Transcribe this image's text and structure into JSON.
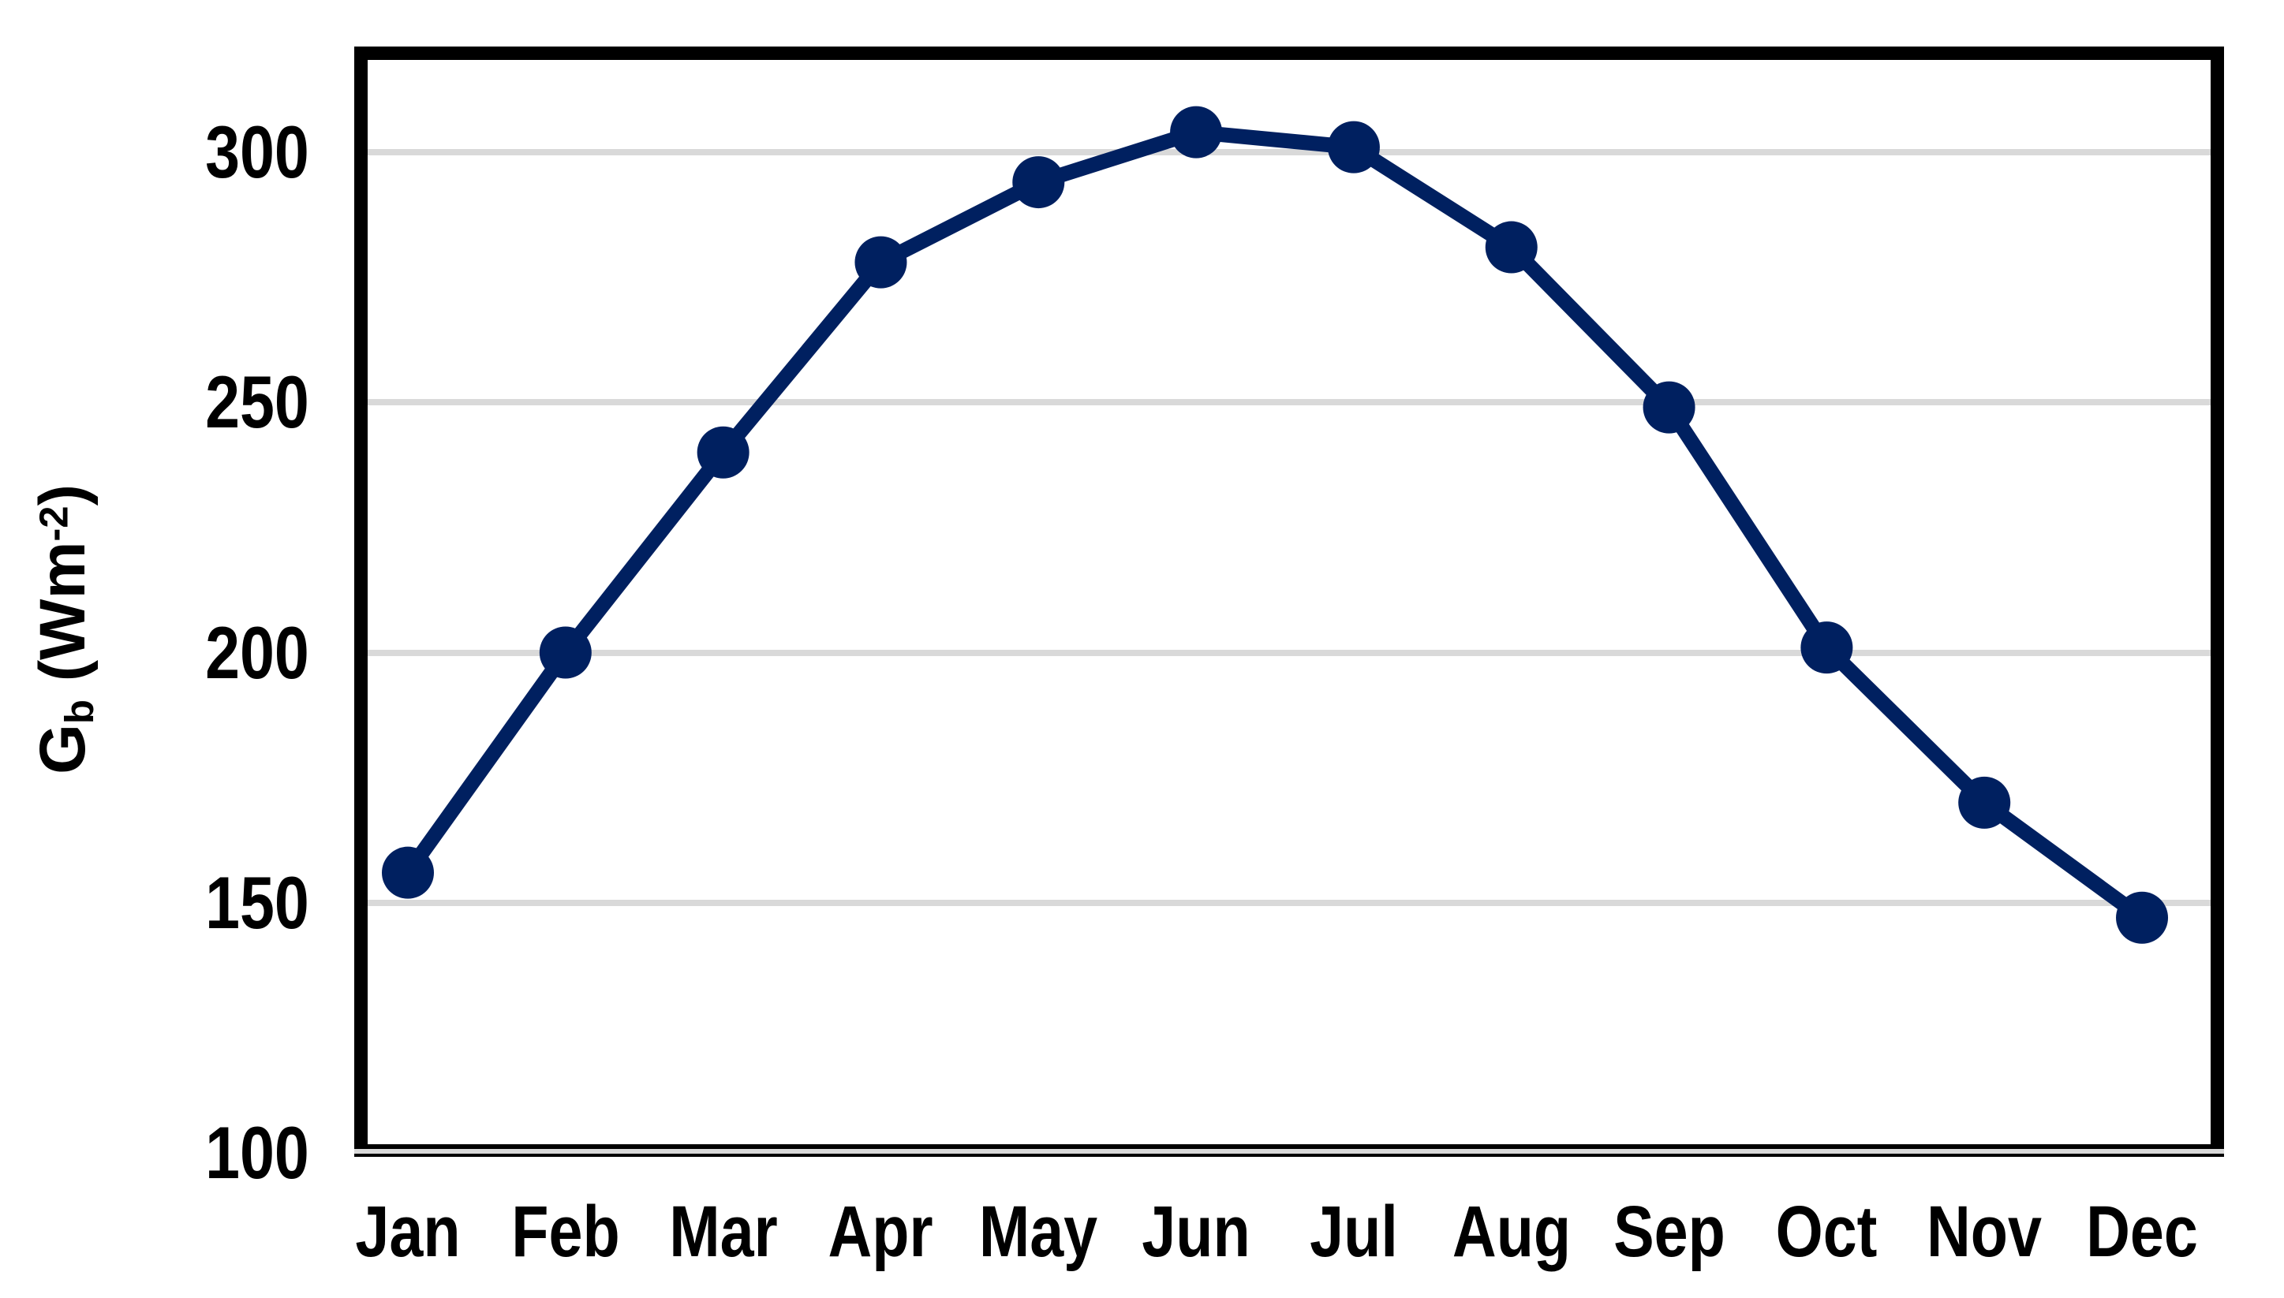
{
  "chart_data": {
    "type": "line",
    "categories": [
      "Jan",
      "Feb",
      "Mar",
      "Apr",
      "May",
      "Jun",
      "Jul",
      "Aug",
      "Sep",
      "Oct",
      "Nov",
      "Dec"
    ],
    "series": [
      {
        "name": "Gb",
        "values": [
          156,
          200,
          240,
          278,
          294,
          304,
          301,
          281,
          249,
          201,
          170,
          147
        ]
      }
    ],
    "ylabel": "Gb (Wm-2)",
    "ylabel_parts": {
      "base": "G",
      "sub": "b",
      "mid": " (Wm",
      "sup": "-2",
      "end": ")"
    },
    "xlabel": "",
    "yticks": [
      100,
      150,
      200,
      250,
      300
    ],
    "ylim": [
      100,
      318
    ],
    "grid": "horizontal",
    "legend": "none",
    "marker": "circle",
    "line_color": "#002060",
    "gridline_color": "#d9d9d9",
    "axis_color": "#000000"
  }
}
